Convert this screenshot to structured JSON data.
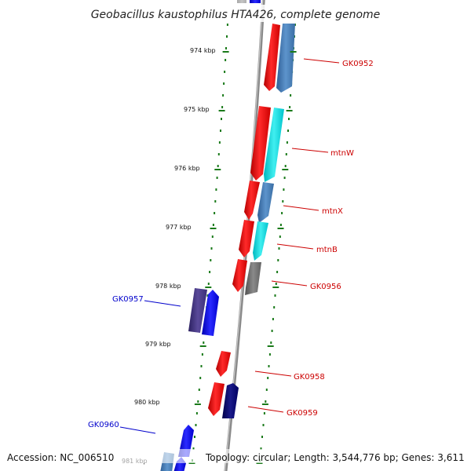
{
  "header": {
    "title": "Geobacillus kaustophilus HTA426, complete genome"
  },
  "footer": {
    "accession": "Accession: NC_006510",
    "summary": "Topology: circular; Length: 3,544,776 bp; Genes: 3,611"
  },
  "axis": {
    "ticks": [
      "974 kbp",
      "975 kbp",
      "976 kbp",
      "977 kbp",
      "978 kbp",
      "979 kbp",
      "980 kbp",
      "981 kbp"
    ]
  },
  "genes": {
    "GK0952": "GK0952",
    "mtnW": "mtnW",
    "mtnX": "mtnX",
    "mtnB": "mtnB",
    "GK0956": "GK0956",
    "GK0957": "GK0957",
    "GK0958": "GK0958",
    "GK0959": "GK0959",
    "GK0960": "GK0960"
  },
  "colors": {
    "forward_strand": "#ff0000",
    "reverse_strand": "#0000ff",
    "backbone": "#888888",
    "tick": "#1a7a1a"
  }
}
